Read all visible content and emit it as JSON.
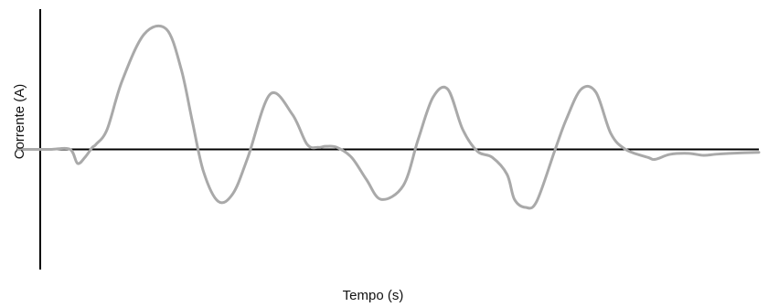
{
  "chart_data": {
    "type": "line",
    "title": "",
    "xlabel": "Tempo (s)",
    "ylabel": "Corrente (A)",
    "xlim": [
      0,
      100
    ],
    "ylim": [
      -1.2,
      1.4
    ],
    "grid": false,
    "legend": "none",
    "series": [
      {
        "color": "#a9a9a9",
        "x": [
          0,
          2.5,
          4.5,
          7,
          8,
          9,
          10,
          10.5,
          12,
          14,
          17,
          20,
          22,
          23.5,
          25,
          27,
          29,
          31,
          34,
          37,
          39,
          40.5,
          41.5,
          43,
          45,
          47,
          49,
          52,
          54,
          56,
          58,
          60,
          62,
          64,
          66,
          67,
          68.5,
          70,
          72.5,
          74,
          76,
          78,
          80,
          82,
          85,
          86,
          88,
          90.5,
          92.5,
          94,
          96,
          100
        ],
        "y": [
          0,
          0,
          0,
          0,
          -0.14,
          -0.08,
          0.02,
          0.05,
          0.2,
          0.68,
          1.15,
          1.2,
          0.8,
          0.28,
          -0.22,
          -0.52,
          -0.44,
          -0.08,
          0.55,
          0.35,
          0.05,
          0.02,
          0.03,
          0.02,
          -0.08,
          -0.3,
          -0.5,
          -0.36,
          0.1,
          0.52,
          0.6,
          0.2,
          -0.02,
          -0.08,
          -0.25,
          -0.5,
          -0.58,
          -0.52,
          0,
          0.3,
          0.6,
          0.57,
          0.16,
          0,
          -0.08,
          -0.1,
          -0.05,
          -0.04,
          -0.06,
          -0.05,
          -0.04,
          -0.03
        ]
      }
    ]
  }
}
